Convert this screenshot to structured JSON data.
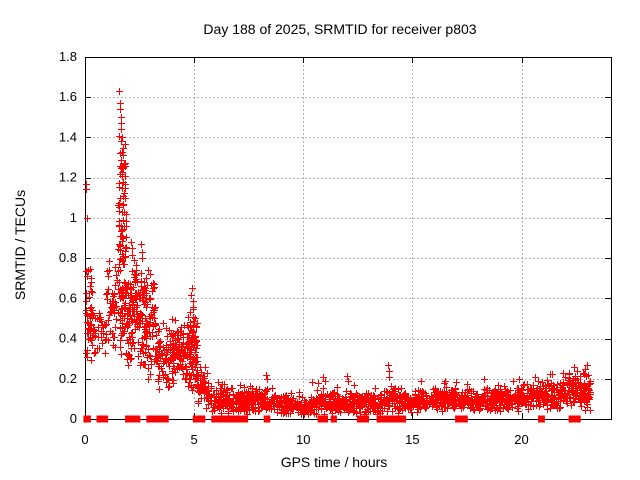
{
  "chart_data": {
    "type": "scatter",
    "title": "Day 188 of 2025, SRMTID for receiver p803",
    "xlabel": "GPS time / hours",
    "ylabel": "SRMTID / TECUs",
    "xlim": [
      0,
      24.1
    ],
    "ylim": [
      0,
      1.8
    ],
    "xticks": [
      0,
      5,
      10,
      15,
      20
    ],
    "xtick_labels": [
      "0",
      "5",
      "10",
      "15",
      "20"
    ],
    "yticks": [
      0,
      0.2,
      0.4,
      0.6,
      0.8,
      1.0,
      1.2,
      1.4,
      1.6,
      1.8
    ],
    "ytick_labels": [
      "0",
      "0.2",
      "0.4",
      "0.6",
      "0.8",
      "1",
      "1.2",
      "1.4",
      "1.6",
      "1.8"
    ],
    "grid": true,
    "legend_position": "none",
    "marker": {
      "shape": "plus",
      "color": "#ff0000",
      "size": 7
    },
    "colors": {
      "points": "#ff0000",
      "border": "#000000",
      "grid": "#b4b4b4",
      "background": "#ffffff"
    },
    "seed": 188,
    "notable_points": [
      [
        0.05,
        1.17
      ],
      [
        0.05,
        1.145
      ],
      [
        0.07,
        1.0
      ],
      [
        1.58,
        1.63
      ],
      [
        1.62,
        1.57
      ],
      [
        1.6,
        1.54
      ],
      [
        1.65,
        1.5
      ],
      [
        1.63,
        1.47
      ],
      [
        1.67,
        1.44
      ],
      [
        1.7,
        1.4
      ],
      [
        1.66,
        1.38
      ],
      [
        1.72,
        1.35
      ],
      [
        1.69,
        1.33
      ],
      [
        1.75,
        1.25
      ],
      [
        1.71,
        1.22
      ],
      [
        1.74,
        1.18
      ],
      [
        1.7,
        1.15
      ],
      [
        1.73,
        1.11
      ],
      [
        1.76,
        1.07
      ],
      [
        1.69,
        1.03
      ],
      [
        1.74,
        0.99
      ],
      [
        1.66,
        0.96
      ],
      [
        2.1,
        0.88
      ],
      [
        2.15,
        0.85
      ],
      [
        2.55,
        0.87
      ],
      [
        2.6,
        0.83
      ],
      [
        2.62,
        0.8
      ],
      [
        2.9,
        0.74
      ],
      [
        3.0,
        0.72
      ],
      [
        4.9,
        0.65
      ],
      [
        4.87,
        0.615
      ],
      [
        4.93,
        0.585
      ],
      [
        4.95,
        0.555
      ],
      [
        8.3,
        0.22
      ],
      [
        8.35,
        0.2
      ],
      [
        10.4,
        0.185
      ],
      [
        10.9,
        0.21
      ],
      [
        11.0,
        0.19
      ],
      [
        12.0,
        0.215
      ],
      [
        12.05,
        0.19
      ],
      [
        13.9,
        0.27
      ],
      [
        13.92,
        0.24
      ],
      [
        13.95,
        0.21
      ],
      [
        16.5,
        0.19
      ],
      [
        17.0,
        0.185
      ],
      [
        18.3,
        0.2
      ],
      [
        19.6,
        0.19
      ],
      [
        20.6,
        0.21
      ],
      [
        21.3,
        0.225
      ],
      [
        21.9,
        0.23
      ],
      [
        22.4,
        0.26
      ],
      [
        22.55,
        0.24
      ],
      [
        22.9,
        0.25
      ],
      [
        23.0,
        0.27
      ],
      [
        23.05,
        0.22
      ]
    ],
    "clusters_format": [
      "x_start_hours",
      "x_end_hours",
      "count",
      "y_center",
      "y_halfspread"
    ],
    "density_clusters": [
      [
        0.02,
        0.35,
        40,
        0.48,
        0.22
      ],
      [
        0.05,
        0.3,
        8,
        0.72,
        0.08
      ],
      [
        0.35,
        0.95,
        30,
        0.42,
        0.17
      ],
      [
        0.95,
        1.5,
        45,
        0.55,
        0.25
      ],
      [
        1.5,
        1.9,
        60,
        0.85,
        0.35
      ],
      [
        1.55,
        1.85,
        25,
        1.22,
        0.22
      ],
      [
        1.6,
        2.15,
        70,
        0.5,
        0.25
      ],
      [
        2.05,
        2.35,
        50,
        0.55,
        0.3
      ],
      [
        2.35,
        2.75,
        55,
        0.48,
        0.28
      ],
      [
        2.75,
        3.25,
        70,
        0.45,
        0.3
      ],
      [
        3.25,
        3.95,
        65,
        0.3,
        0.18
      ],
      [
        3.95,
        4.45,
        70,
        0.33,
        0.18
      ],
      [
        4.45,
        5.15,
        90,
        0.32,
        0.22
      ],
      [
        4.82,
        4.98,
        16,
        0.42,
        0.2
      ],
      [
        5.1,
        5.6,
        55,
        0.17,
        0.12
      ],
      [
        5.6,
        6.6,
        85,
        0.1,
        0.08
      ],
      [
        6.6,
        7.6,
        95,
        0.09,
        0.07
      ],
      [
        7.6,
        8.6,
        90,
        0.1,
        0.07
      ],
      [
        8.6,
        9.6,
        90,
        0.075,
        0.055
      ],
      [
        9.6,
        10.6,
        90,
        0.07,
        0.05
      ],
      [
        10.6,
        11.6,
        90,
        0.085,
        0.06
      ],
      [
        11.6,
        12.6,
        90,
        0.08,
        0.06
      ],
      [
        12.6,
        13.7,
        95,
        0.08,
        0.06
      ],
      [
        13.7,
        14.6,
        75,
        0.1,
        0.08
      ],
      [
        14.6,
        15.1,
        35,
        0.08,
        0.05
      ],
      [
        15.1,
        16.1,
        90,
        0.09,
        0.06
      ],
      [
        16.1,
        17.1,
        90,
        0.1,
        0.065
      ],
      [
        17.1,
        18.1,
        85,
        0.09,
        0.06
      ],
      [
        18.1,
        19.1,
        85,
        0.1,
        0.065
      ],
      [
        19.1,
        20.1,
        85,
        0.1,
        0.07
      ],
      [
        20.1,
        21.1,
        85,
        0.12,
        0.075
      ],
      [
        21.1,
        22.1,
        85,
        0.12,
        0.08
      ],
      [
        22.1,
        22.9,
        75,
        0.15,
        0.09
      ],
      [
        22.9,
        23.15,
        30,
        0.13,
        0.11
      ]
    ],
    "zero_value_segments_hours": [
      [
        0.02,
        0.18
      ],
      [
        0.62,
        0.68
      ],
      [
        0.78,
        0.82
      ],
      [
        0.88,
        0.93
      ],
      [
        1.93,
        2.45
      ],
      [
        2.9,
        3.0
      ],
      [
        3.06,
        3.12
      ],
      [
        3.28,
        3.34
      ],
      [
        3.53,
        3.75
      ],
      [
        5.03,
        5.42
      ],
      [
        5.88,
        6.1
      ],
      [
        6.15,
        6.32
      ],
      [
        6.5,
        6.82
      ],
      [
        7.0,
        7.38
      ],
      [
        8.28,
        8.4
      ],
      [
        10.75,
        11.05
      ],
      [
        11.35,
        11.45
      ],
      [
        12.55,
        12.92
      ],
      [
        13.45,
        14.2
      ],
      [
        14.3,
        14.62
      ],
      [
        17.05,
        17.45
      ],
      [
        20.85,
        20.98
      ],
      [
        22.25,
        22.62
      ]
    ]
  }
}
